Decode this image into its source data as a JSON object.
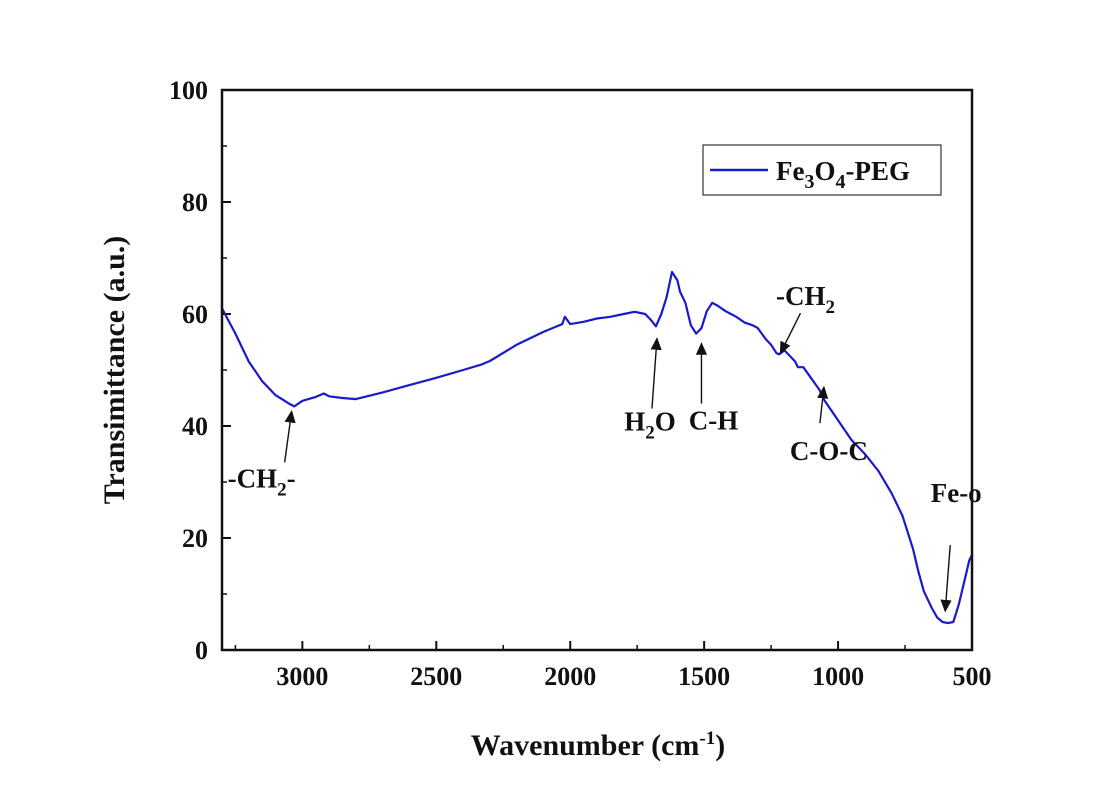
{
  "chart_data": {
    "type": "line",
    "xlabel": "Wavenumber (cm-1)",
    "xlabel_parts": {
      "main": "Wavenumber (cm",
      "sup": "-1",
      "close": ")"
    },
    "ylabel": "Transimittance (a.u.)",
    "xlim": [
      3300,
      500
    ],
    "ylim": [
      0,
      100
    ],
    "x_ticks": [
      3000,
      2500,
      2000,
      1500,
      1000,
      500
    ],
    "y_ticks": [
      0,
      20,
      40,
      60,
      80,
      100
    ],
    "grid": false,
    "legend_position": "top-right",
    "series": [
      {
        "name": "Fe3O4-PEG",
        "name_parts": {
          "a": "Fe",
          "sub1": "3",
          "b": "O",
          "sub2": "4",
          "c": "-PEG"
        },
        "color": "#1a1acc",
        "x": [
          3300,
          3250,
          3200,
          3150,
          3100,
          3050,
          3030,
          3000,
          2950,
          2920,
          2900,
          2850,
          2800,
          2700,
          2600,
          2500,
          2400,
          2330,
          2300,
          2200,
          2100,
          2030,
          2020,
          2000,
          1950,
          1900,
          1850,
          1800,
          1760,
          1720,
          1700,
          1680,
          1660,
          1640,
          1620,
          1600,
          1590,
          1570,
          1550,
          1530,
          1510,
          1490,
          1470,
          1450,
          1420,
          1400,
          1380,
          1350,
          1320,
          1300,
          1270,
          1250,
          1230,
          1220,
          1200,
          1180,
          1160,
          1150,
          1130,
          1100,
          1070,
          1050,
          1000,
          950,
          900,
          850,
          800,
          760,
          720,
          700,
          680,
          650,
          630,
          610,
          590,
          570,
          550,
          530,
          510,
          500
        ],
        "y": [
          61,
          56.5,
          51.5,
          48,
          45.5,
          44,
          43.5,
          44.5,
          45.2,
          45.8,
          45.3,
          45,
          44.8,
          46,
          47.3,
          48.6,
          50,
          51,
          51.6,
          54.5,
          56.8,
          58.2,
          59.5,
          58.2,
          58.6,
          59.2,
          59.5,
          60,
          60.4,
          60,
          59,
          57.8,
          60,
          63,
          67.5,
          66,
          64,
          62,
          58,
          56.5,
          57.5,
          60.5,
          62,
          61.5,
          60.5,
          60,
          59.5,
          58.5,
          58,
          57.5,
          55.5,
          54.5,
          53,
          52.8,
          53.5,
          52.5,
          51.5,
          50.5,
          50.5,
          48.5,
          46.5,
          44.5,
          41,
          37.5,
          35,
          32,
          28,
          24,
          18,
          14,
          10.5,
          7.5,
          5.8,
          5,
          4.8,
          5,
          8,
          12,
          16,
          17
        ]
      }
    ],
    "annotations": [
      {
        "label": "-CH2-",
        "parts": [
          "-CH",
          "2",
          "-"
        ],
        "wavenumber": 3040,
        "value": 43.5
      },
      {
        "label": "H2O",
        "parts": [
          "H",
          "2",
          "O"
        ],
        "wavenumber": 1650,
        "value": 56.5
      },
      {
        "label": "C-H",
        "parts": [
          "C-H",
          "",
          ""
        ],
        "wavenumber": 1510,
        "value": 56.5
      },
      {
        "label": "-CH2",
        "parts": [
          "-CH",
          "2",
          ""
        ],
        "wavenumber": 1215,
        "value": 53
      },
      {
        "label": "C-O-C",
        "parts": [
          "C-O-C",
          "",
          ""
        ],
        "wavenumber": 1135,
        "value": 50.5
      },
      {
        "label": "Fe-o",
        "parts": [
          "Fe-o",
          "",
          ""
        ],
        "wavenumber": 600,
        "value": 4.8
      }
    ]
  }
}
